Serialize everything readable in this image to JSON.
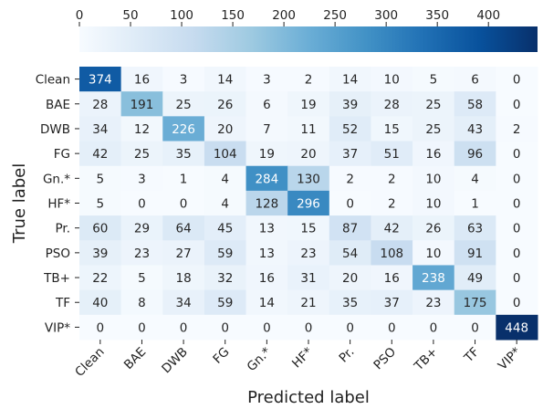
{
  "chart_data": {
    "type": "heatmap",
    "xlabel": "Predicted label",
    "ylabel": "True label",
    "x_categories": [
      "Clean",
      "BAE",
      "DWB",
      "FG",
      "Gn.*",
      "HF*",
      "Pr.",
      "PSO",
      "TB+",
      "TF",
      "VIP*"
    ],
    "y_categories": [
      "Clean",
      "BAE",
      "DWB",
      "FG",
      "Gn.*",
      "HF*",
      "Pr.",
      "PSO",
      "TB+",
      "TF",
      "VIP*"
    ],
    "values": [
      [
        374,
        16,
        3,
        14,
        3,
        2,
        14,
        10,
        5,
        6,
        0
      ],
      [
        28,
        191,
        25,
        26,
        6,
        19,
        39,
        28,
        25,
        58,
        0
      ],
      [
        34,
        12,
        226,
        20,
        7,
        11,
        52,
        15,
        25,
        43,
        2
      ],
      [
        42,
        25,
        35,
        104,
        19,
        20,
        37,
        51,
        16,
        96,
        0
      ],
      [
        5,
        3,
        1,
        4,
        284,
        130,
        2,
        2,
        10,
        4,
        0
      ],
      [
        5,
        0,
        0,
        4,
        128,
        296,
        0,
        2,
        10,
        1,
        0
      ],
      [
        60,
        29,
        64,
        45,
        13,
        15,
        87,
        42,
        26,
        63,
        0
      ],
      [
        39,
        23,
        27,
        59,
        13,
        23,
        54,
        108,
        10,
        91,
        0
      ],
      [
        22,
        5,
        18,
        32,
        16,
        31,
        20,
        16,
        238,
        49,
        0
      ],
      [
        40,
        8,
        34,
        59,
        14,
        21,
        35,
        37,
        23,
        175,
        0
      ],
      [
        0,
        0,
        0,
        0,
        0,
        0,
        0,
        0,
        0,
        0,
        448
      ]
    ],
    "colorbar": {
      "ticks": [
        "0",
        "50",
        "100",
        "150",
        "200",
        "250",
        "300",
        "350",
        "400"
      ],
      "range": [
        0,
        448
      ],
      "position": "top",
      "colormap": "Blues"
    },
    "colors": {
      "low": "#f7fbff",
      "high": "#08306b",
      "text_dark": "#262626",
      "text_light": "#ffffff"
    }
  }
}
